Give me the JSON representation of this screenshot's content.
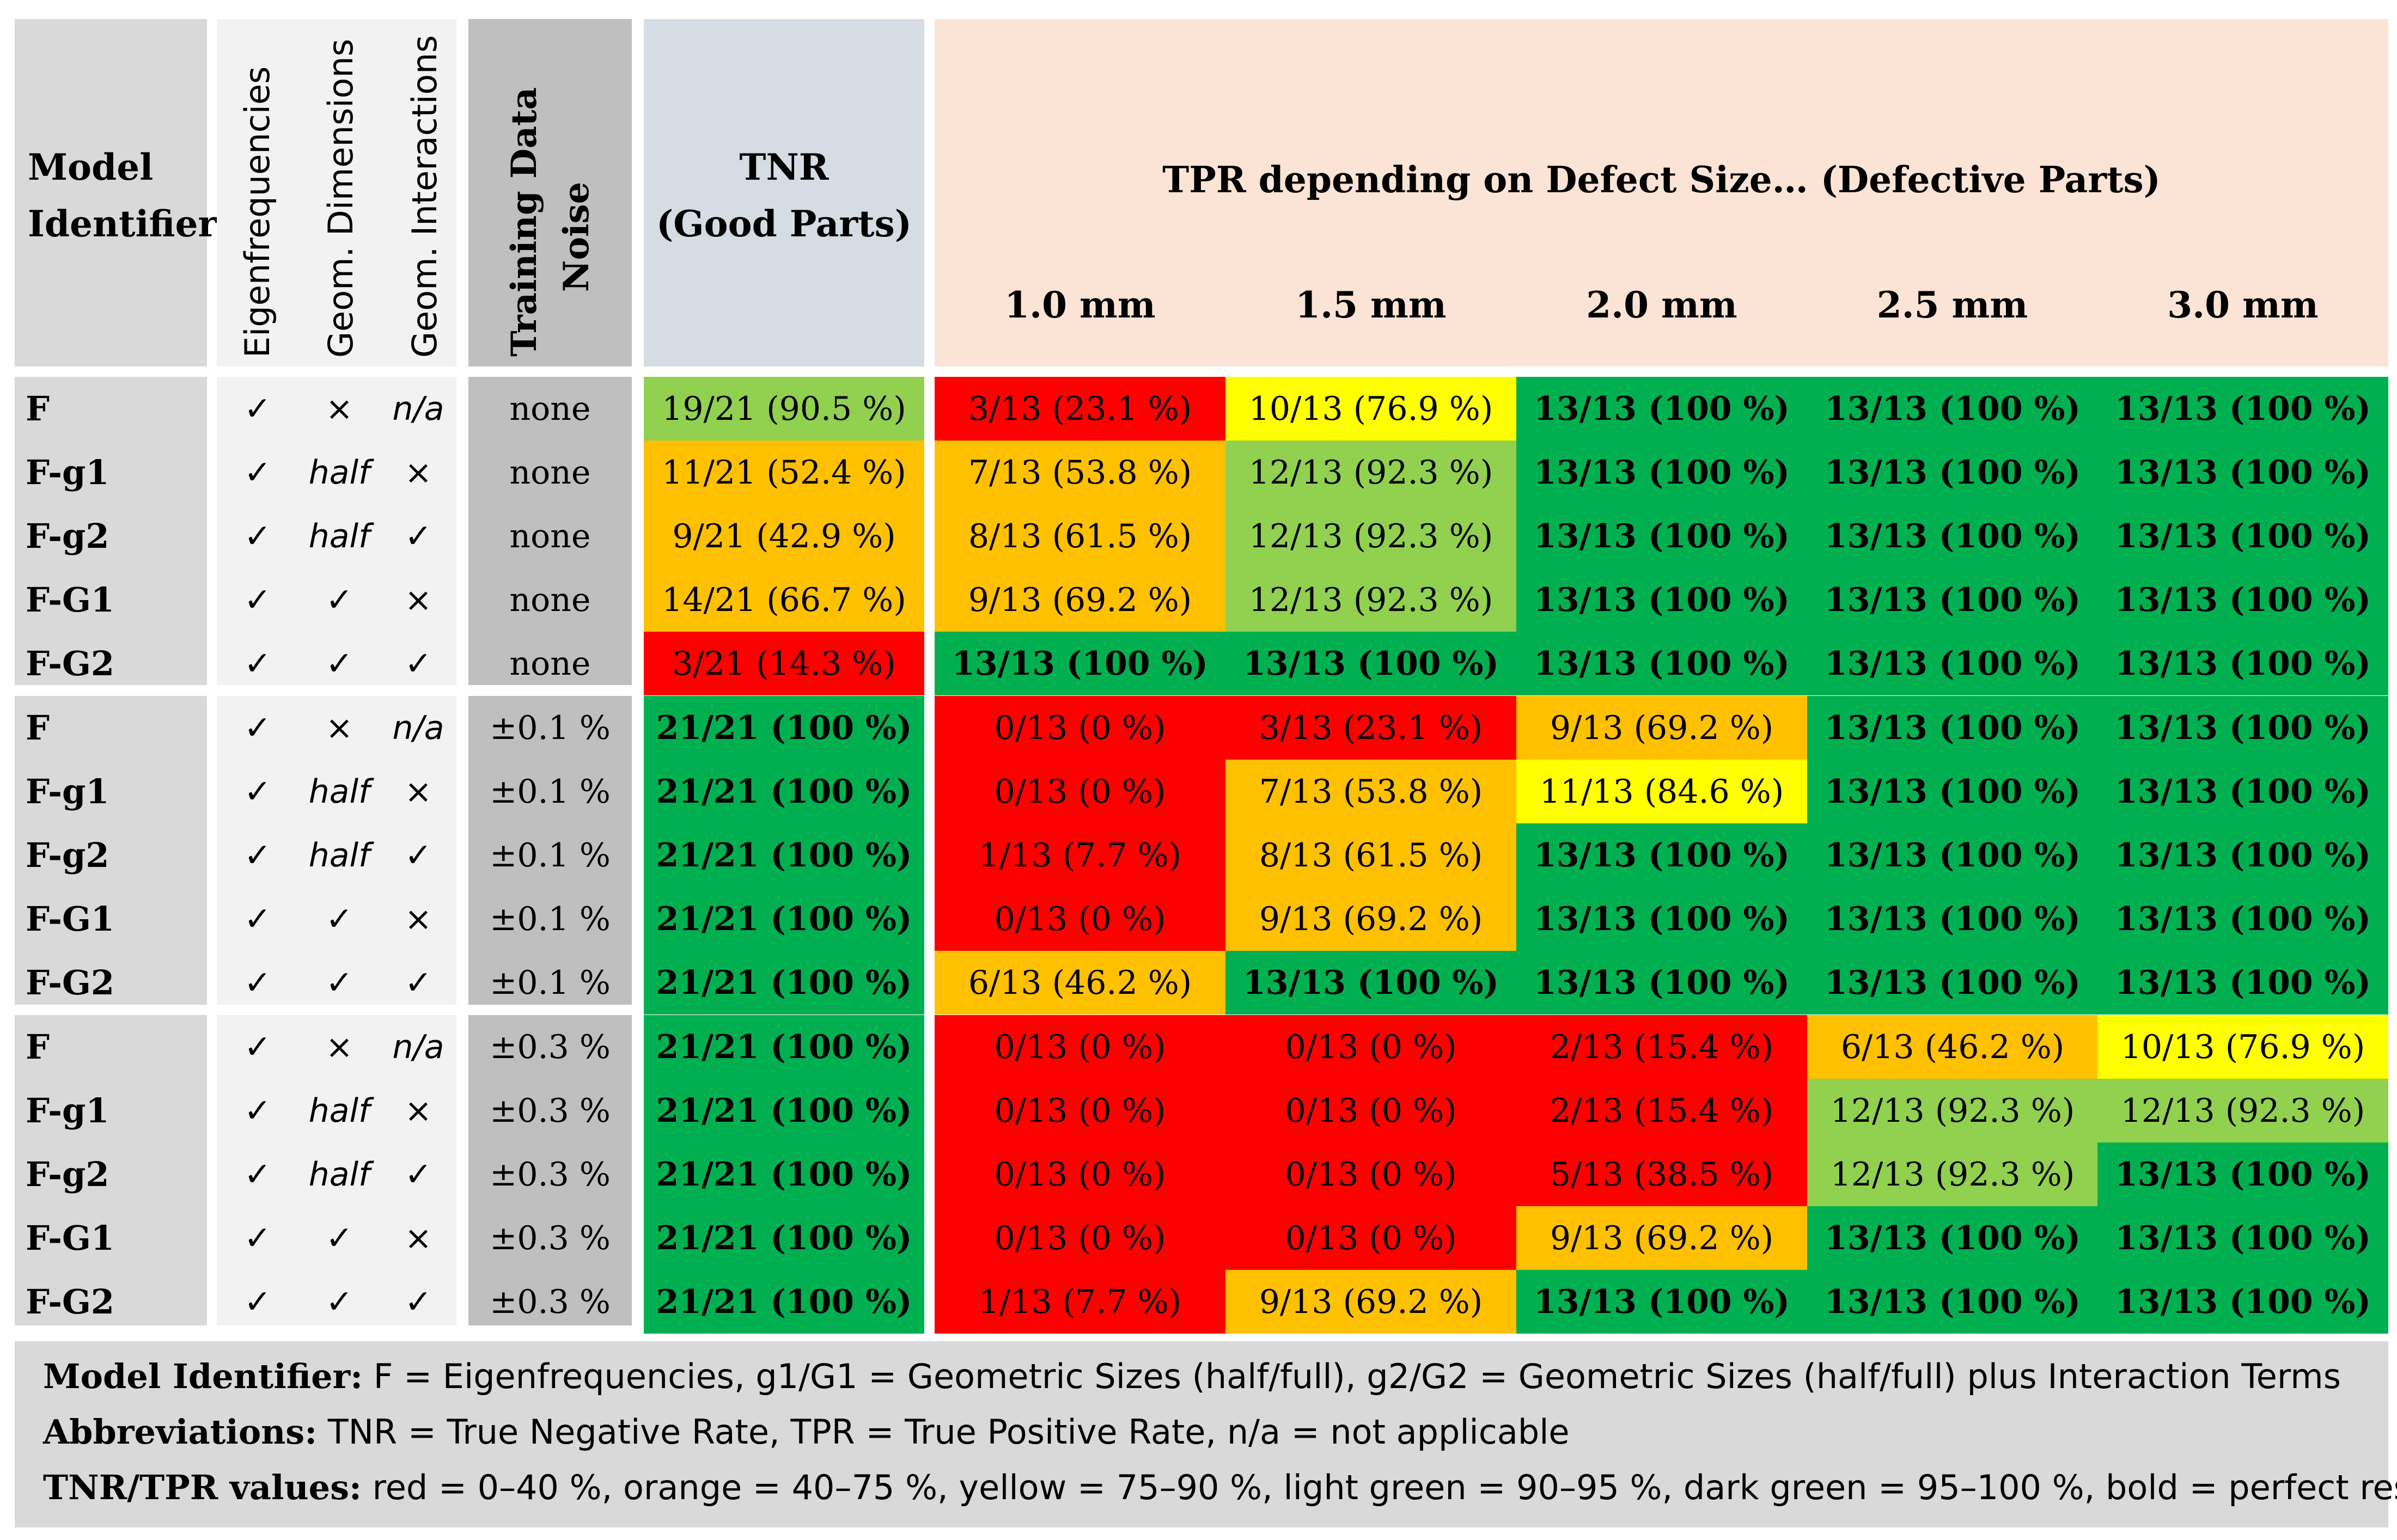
{
  "header": {
    "model_identifier": [
      "Model",
      "Identifier"
    ],
    "eigenfrequencies": "Eigenfrequencies",
    "geom_dimensions": "Geom. Dimensions",
    "geom_interactions": "Geom. Interactions",
    "training_data_noise": [
      "Training Data",
      "Noise"
    ],
    "tnr": [
      "TNR",
      "(Good Parts)"
    ],
    "tpr_title": "TPR depending on Defect Size… (Defective Parts)",
    "defect_sizes": [
      "1.0 mm",
      "1.5 mm",
      "2.0 mm",
      "2.5 mm",
      "3.0 mm"
    ]
  },
  "colors": {
    "red": "#ff0000",
    "orange": "#ffc000",
    "yellow": "#ffff00",
    "light_green": "#92d050",
    "dark_green": "#00b050"
  },
  "rows": [
    {
      "id": "F",
      "eig": "✓",
      "geom": "×",
      "inter": "n/a",
      "noise": "none",
      "tnr": {
        "text": "19/21 (90.5 %)",
        "color": "light_green",
        "bold": false
      },
      "tpr": [
        {
          "text": "3/13 (23.1 %)",
          "color": "red",
          "bold": false
        },
        {
          "text": "10/13 (76.9 %)",
          "color": "yellow",
          "bold": false
        },
        {
          "text": "13/13 (100 %)",
          "color": "dark_green",
          "bold": true
        },
        {
          "text": "13/13 (100 %)",
          "color": "dark_green",
          "bold": true
        },
        {
          "text": "13/13 (100 %)",
          "color": "dark_green",
          "bold": true
        }
      ]
    },
    {
      "id": "F-g1",
      "eig": "✓",
      "geom": "half",
      "inter": "×",
      "noise": "none",
      "tnr": {
        "text": "11/21 (52.4 %)",
        "color": "orange",
        "bold": false
      },
      "tpr": [
        {
          "text": "7/13 (53.8 %)",
          "color": "orange",
          "bold": false
        },
        {
          "text": "12/13 (92.3 %)",
          "color": "light_green",
          "bold": false
        },
        {
          "text": "13/13 (100 %)",
          "color": "dark_green",
          "bold": true
        },
        {
          "text": "13/13 (100 %)",
          "color": "dark_green",
          "bold": true
        },
        {
          "text": "13/13 (100 %)",
          "color": "dark_green",
          "bold": true
        }
      ]
    },
    {
      "id": "F-g2",
      "eig": "✓",
      "geom": "half",
      "inter": "✓",
      "noise": "none",
      "tnr": {
        "text": "9/21 (42.9 %)",
        "color": "orange",
        "bold": false
      },
      "tpr": [
        {
          "text": "8/13 (61.5 %)",
          "color": "orange",
          "bold": false
        },
        {
          "text": "12/13 (92.3 %)",
          "color": "light_green",
          "bold": false
        },
        {
          "text": "13/13 (100 %)",
          "color": "dark_green",
          "bold": true
        },
        {
          "text": "13/13 (100 %)",
          "color": "dark_green",
          "bold": true
        },
        {
          "text": "13/13 (100 %)",
          "color": "dark_green",
          "bold": true
        }
      ]
    },
    {
      "id": "F-G1",
      "eig": "✓",
      "geom": "✓",
      "inter": "×",
      "noise": "none",
      "tnr": {
        "text": "14/21 (66.7 %)",
        "color": "orange",
        "bold": false
      },
      "tpr": [
        {
          "text": "9/13 (69.2 %)",
          "color": "orange",
          "bold": false
        },
        {
          "text": "12/13 (92.3 %)",
          "color": "light_green",
          "bold": false
        },
        {
          "text": "13/13 (100 %)",
          "color": "dark_green",
          "bold": true
        },
        {
          "text": "13/13 (100 %)",
          "color": "dark_green",
          "bold": true
        },
        {
          "text": "13/13 (100 %)",
          "color": "dark_green",
          "bold": true
        }
      ]
    },
    {
      "id": "F-G2",
      "eig": "✓",
      "geom": "✓",
      "inter": "✓",
      "noise": "none",
      "tnr": {
        "text": "3/21 (14.3 %)",
        "color": "red",
        "bold": false
      },
      "tpr": [
        {
          "text": "13/13 (100 %)",
          "color": "dark_green",
          "bold": true
        },
        {
          "text": "13/13 (100 %)",
          "color": "dark_green",
          "bold": true
        },
        {
          "text": "13/13 (100 %)",
          "color": "dark_green",
          "bold": true
        },
        {
          "text": "13/13 (100 %)",
          "color": "dark_green",
          "bold": true
        },
        {
          "text": "13/13 (100 %)",
          "color": "dark_green",
          "bold": true
        }
      ]
    },
    {
      "id": "F",
      "eig": "✓",
      "geom": "×",
      "inter": "n/a",
      "noise": "±0.1 %",
      "tnr": {
        "text": "21/21 (100 %)",
        "color": "dark_green",
        "bold": true
      },
      "tpr": [
        {
          "text": "0/13 (0 %)",
          "color": "red",
          "bold": false
        },
        {
          "text": "3/13 (23.1 %)",
          "color": "red",
          "bold": false
        },
        {
          "text": "9/13 (69.2 %)",
          "color": "orange",
          "bold": false
        },
        {
          "text": "13/13 (100 %)",
          "color": "dark_green",
          "bold": true
        },
        {
          "text": "13/13 (100 %)",
          "color": "dark_green",
          "bold": true
        }
      ]
    },
    {
      "id": "F-g1",
      "eig": "✓",
      "geom": "half",
      "inter": "×",
      "noise": "±0.1 %",
      "tnr": {
        "text": "21/21 (100 %)",
        "color": "dark_green",
        "bold": true
      },
      "tpr": [
        {
          "text": "0/13 (0 %)",
          "color": "red",
          "bold": false
        },
        {
          "text": "7/13 (53.8 %)",
          "color": "orange",
          "bold": false
        },
        {
          "text": "11/13 (84.6 %)",
          "color": "yellow",
          "bold": false
        },
        {
          "text": "13/13 (100 %)",
          "color": "dark_green",
          "bold": true
        },
        {
          "text": "13/13 (100 %)",
          "color": "dark_green",
          "bold": true
        }
      ]
    },
    {
      "id": "F-g2",
      "eig": "✓",
      "geom": "half",
      "inter": "✓",
      "noise": "±0.1 %",
      "tnr": {
        "text": "21/21 (100 %)",
        "color": "dark_green",
        "bold": true
      },
      "tpr": [
        {
          "text": "1/13 (7.7 %)",
          "color": "red",
          "bold": false
        },
        {
          "text": "8/13 (61.5 %)",
          "color": "orange",
          "bold": false
        },
        {
          "text": "13/13 (100 %)",
          "color": "dark_green",
          "bold": true
        },
        {
          "text": "13/13 (100 %)",
          "color": "dark_green",
          "bold": true
        },
        {
          "text": "13/13 (100 %)",
          "color": "dark_green",
          "bold": true
        }
      ]
    },
    {
      "id": "F-G1",
      "eig": "✓",
      "geom": "✓",
      "inter": "×",
      "noise": "±0.1 %",
      "tnr": {
        "text": "21/21 (100 %)",
        "color": "dark_green",
        "bold": true
      },
      "tpr": [
        {
          "text": "0/13 (0 %)",
          "color": "red",
          "bold": false
        },
        {
          "text": "9/13 (69.2 %)",
          "color": "orange",
          "bold": false
        },
        {
          "text": "13/13 (100 %)",
          "color": "dark_green",
          "bold": true
        },
        {
          "text": "13/13 (100 %)",
          "color": "dark_green",
          "bold": true
        },
        {
          "text": "13/13 (100 %)",
          "color": "dark_green",
          "bold": true
        }
      ]
    },
    {
      "id": "F-G2",
      "eig": "✓",
      "geom": "✓",
      "inter": "✓",
      "noise": "±0.1 %",
      "tnr": {
        "text": "21/21 (100 %)",
        "color": "dark_green",
        "bold": true
      },
      "tpr": [
        {
          "text": "6/13 (46.2 %)",
          "color": "orange",
          "bold": false
        },
        {
          "text": "13/13 (100 %)",
          "color": "dark_green",
          "bold": true
        },
        {
          "text": "13/13 (100 %)",
          "color": "dark_green",
          "bold": true
        },
        {
          "text": "13/13 (100 %)",
          "color": "dark_green",
          "bold": true
        },
        {
          "text": "13/13 (100 %)",
          "color": "dark_green",
          "bold": true
        }
      ]
    },
    {
      "id": "F",
      "eig": "✓",
      "geom": "×",
      "inter": "n/a",
      "noise": "±0.3 %",
      "tnr": {
        "text": "21/21 (100 %)",
        "color": "dark_green",
        "bold": true
      },
      "tpr": [
        {
          "text": "0/13 (0 %)",
          "color": "red",
          "bold": false
        },
        {
          "text": "0/13 (0 %)",
          "color": "red",
          "bold": false
        },
        {
          "text": "2/13 (15.4 %)",
          "color": "red",
          "bold": false
        },
        {
          "text": "6/13 (46.2 %)",
          "color": "orange",
          "bold": false
        },
        {
          "text": "10/13 (76.9 %)",
          "color": "yellow",
          "bold": false
        }
      ]
    },
    {
      "id": "F-g1",
      "eig": "✓",
      "geom": "half",
      "inter": "×",
      "noise": "±0.3 %",
      "tnr": {
        "text": "21/21 (100 %)",
        "color": "dark_green",
        "bold": true
      },
      "tpr": [
        {
          "text": "0/13 (0 %)",
          "color": "red",
          "bold": false
        },
        {
          "text": "0/13 (0 %)",
          "color": "red",
          "bold": false
        },
        {
          "text": "2/13 (15.4 %)",
          "color": "red",
          "bold": false
        },
        {
          "text": "12/13 (92.3 %)",
          "color": "light_green",
          "bold": false
        },
        {
          "text": "12/13 (92.3 %)",
          "color": "light_green",
          "bold": false
        }
      ]
    },
    {
      "id": "F-g2",
      "eig": "✓",
      "geom": "half",
      "inter": "✓",
      "noise": "±0.3 %",
      "tnr": {
        "text": "21/21 (100 %)",
        "color": "dark_green",
        "bold": true
      },
      "tpr": [
        {
          "text": "0/13 (0 %)",
          "color": "red",
          "bold": false
        },
        {
          "text": "0/13 (0 %)",
          "color": "red",
          "bold": false
        },
        {
          "text": "5/13 (38.5 %)",
          "color": "red",
          "bold": false
        },
        {
          "text": "12/13 (92.3 %)",
          "color": "light_green",
          "bold": false
        },
        {
          "text": "13/13 (100 %)",
          "color": "dark_green",
          "bold": true
        }
      ]
    },
    {
      "id": "F-G1",
      "eig": "✓",
      "geom": "✓",
      "inter": "×",
      "noise": "±0.3 %",
      "tnr": {
        "text": "21/21 (100 %)",
        "color": "dark_green",
        "bold": true
      },
      "tpr": [
        {
          "text": "0/13 (0 %)",
          "color": "red",
          "bold": false
        },
        {
          "text": "0/13 (0 %)",
          "color": "red",
          "bold": false
        },
        {
          "text": "9/13 (69.2 %)",
          "color": "orange",
          "bold": false
        },
        {
          "text": "13/13 (100 %)",
          "color": "dark_green",
          "bold": true
        },
        {
          "text": "13/13 (100 %)",
          "color": "dark_green",
          "bold": true
        }
      ]
    },
    {
      "id": "F-G2",
      "eig": "✓",
      "geom": "✓",
      "inter": "✓",
      "noise": "±0.3 %",
      "tnr": {
        "text": "21/21 (100 %)",
        "color": "dark_green",
        "bold": true
      },
      "tpr": [
        {
          "text": "1/13 (7.7 %)",
          "color": "red",
          "bold": false
        },
        {
          "text": "9/13 (69.2 %)",
          "color": "orange",
          "bold": false
        },
        {
          "text": "13/13 (100 %)",
          "color": "dark_green",
          "bold": true
        },
        {
          "text": "13/13 (100 %)",
          "color": "dark_green",
          "bold": true
        },
        {
          "text": "13/13 (100 %)",
          "color": "dark_green",
          "bold": true
        }
      ]
    }
  ],
  "legend": {
    "model_identifier_label": "Model Identifier:",
    "model_identifier_text": " F = Eigenfrequencies, g1/G1 = Geometric Sizes (half/full), g2/G2 = Geometric Sizes (half/full) plus Interaction Terms",
    "abbreviations_label": "Abbreviations:",
    "abbreviations_text": " TNR = True Negative Rate, TPR = True Positive Rate, n/a = not applicable",
    "values_label": "TNR/TPR values:",
    "values_text": " red = 0–40 %, orange = 40–75 %, yellow = 75–90 %, light green = 90–95 %, dark green = 95–100 %, bold = perfect result"
  }
}
